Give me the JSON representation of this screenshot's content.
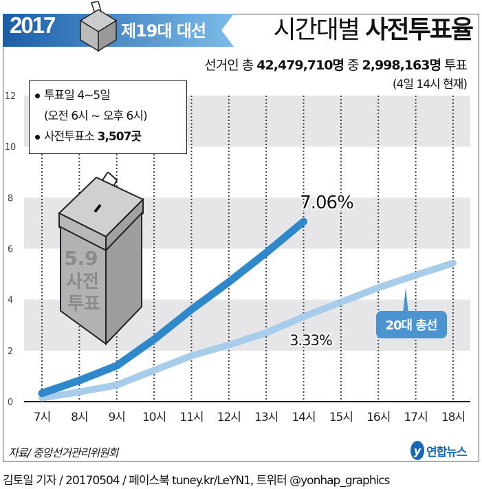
{
  "banner": {
    "year": "2017",
    "election": "제19대 대선"
  },
  "header": {
    "title_light": "시간대별",
    "title_bold": "사전투표율",
    "sub_pre": "선거인 총",
    "sub_total": "42,479,710명",
    "sub_mid": "중",
    "sub_votes": "2,998,163명",
    "sub_post": "투표",
    "note": "(4일 14시 현재)"
  },
  "info": {
    "line1": "투표일 4~5일",
    "line2": "(오전 6시 ~ 오후 6시)",
    "line3_pre": "사전투표소",
    "line3_val": "3,507곳"
  },
  "ballot_box": {
    "label1": "5.9",
    "label2": "사전",
    "label3": "투표"
  },
  "chart_data": {
    "type": "line",
    "categories": [
      "7시",
      "8시",
      "9시",
      "10시",
      "11시",
      "12시",
      "13시",
      "14시",
      "15시",
      "16시",
      "17시",
      "18시"
    ],
    "yticks": [
      "0",
      "2",
      "4",
      "6",
      "8",
      "10",
      "12"
    ],
    "ylim": [
      0,
      12
    ],
    "grid": "vertical dotted, horizontal bands",
    "series": [
      {
        "values": [
          0.33,
          0.83,
          1.41,
          2.44,
          3.61,
          4.69,
          5.84,
          7.06,
          null,
          null,
          null,
          null
        ],
        "color": "#2a86c8",
        "end_label": "7.06%"
      },
      {
        "name": "20대 총선",
        "values": [
          0.15,
          0.38,
          0.65,
          1.23,
          1.8,
          2.22,
          2.7,
          3.33,
          3.9,
          4.47,
          4.96,
          5.43
        ],
        "color": "#a7cdea",
        "label_at_14": "3.33%"
      }
    ]
  },
  "footer": {
    "source": "자료/ 중앙선거관리위원회",
    "logo": "연합뉴스",
    "credit": "김토일 기자 / 20170504 / 페이스북 tuney.kr/LeYN1, 트위터 @yonhap_graphics"
  },
  "colors": {
    "banner_dark": "#1a5ea8",
    "banner_light": "#6fb2e4",
    "band": "#e6e6e8",
    "legend_box": "#4c94d0"
  }
}
